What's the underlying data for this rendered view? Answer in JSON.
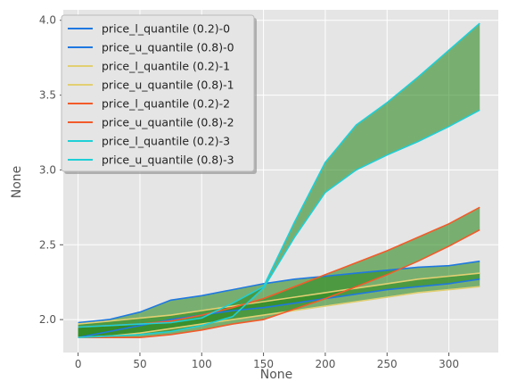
{
  "chart_data": {
    "type": "line",
    "xlabel": "None",
    "ylabel": "None",
    "xlim": [
      -12,
      340
    ],
    "ylim": [
      1.78,
      4.07
    ],
    "xticks": [
      0,
      50,
      100,
      150,
      200,
      250,
      300
    ],
    "yticks": [
      2.0,
      2.5,
      3.0,
      3.5,
      4.0
    ],
    "xtick_labels": [
      "0",
      "50",
      "100",
      "150",
      "200",
      "250",
      "300"
    ],
    "ytick_labels": [
      "2.0",
      "2.5",
      "3.0",
      "3.5",
      "4.0"
    ],
    "grid": true,
    "legend_position": "top-left",
    "fill_color": "#2e8b22",
    "bands": [
      {
        "lower_name": "price_l_quantile (0.2)-0",
        "upper_name": "price_u_quantile (0.8)-0",
        "color": "#1f78e0",
        "x": [
          0,
          25,
          50,
          75,
          100,
          125,
          150,
          175,
          200,
          225,
          250,
          275,
          300,
          325
        ],
        "lower": [
          1.88,
          1.92,
          1.96,
          2.0,
          2.03,
          2.06,
          2.08,
          2.11,
          2.14,
          2.17,
          2.2,
          2.22,
          2.24,
          2.27
        ],
        "upper": [
          1.98,
          2.0,
          2.05,
          2.13,
          2.16,
          2.2,
          2.24,
          2.27,
          2.29,
          2.31,
          2.33,
          2.35,
          2.36,
          2.39
        ]
      },
      {
        "lower_name": "price_l_quantile (0.2)-1",
        "upper_name": "price_u_quantile (0.8)-1",
        "color": "#e2cf72",
        "x": [
          0,
          25,
          50,
          75,
          100,
          125,
          150,
          175,
          200,
          225,
          250,
          275,
          300,
          325
        ],
        "lower": [
          1.88,
          1.89,
          1.91,
          1.94,
          1.97,
          2.0,
          2.03,
          2.06,
          2.09,
          2.12,
          2.15,
          2.18,
          2.2,
          2.22
        ],
        "upper": [
          1.97,
          1.99,
          2.01,
          2.03,
          2.06,
          2.09,
          2.12,
          2.15,
          2.18,
          2.21,
          2.24,
          2.27,
          2.29,
          2.31
        ]
      },
      {
        "lower_name": "price_l_quantile (0.2)-2",
        "upper_name": "price_u_quantile (0.8)-2",
        "color": "#f25b2a",
        "x": [
          0,
          25,
          50,
          75,
          100,
          125,
          150,
          175,
          200,
          225,
          250,
          275,
          300,
          325
        ],
        "lower": [
          1.88,
          1.88,
          1.88,
          1.9,
          1.93,
          1.97,
          2.0,
          2.07,
          2.14,
          2.22,
          2.3,
          2.39,
          2.49,
          2.6
        ],
        "upper": [
          1.95,
          1.96,
          1.97,
          1.99,
          2.03,
          2.08,
          2.14,
          2.22,
          2.3,
          2.38,
          2.46,
          2.55,
          2.64,
          2.75
        ]
      },
      {
        "lower_name": "price_l_quantile (0.2)-3",
        "upper_name": "price_u_quantile (0.8)-3",
        "color": "#1fcfd6",
        "x": [
          0,
          25,
          50,
          75,
          100,
          125,
          150,
          175,
          200,
          225,
          250,
          275,
          300,
          325
        ],
        "lower": [
          1.88,
          1.89,
          1.9,
          1.92,
          1.96,
          2.02,
          2.21,
          2.55,
          2.85,
          3.0,
          3.1,
          3.19,
          3.29,
          3.4
        ],
        "upper": [
          1.95,
          1.96,
          1.97,
          1.98,
          2.01,
          2.11,
          2.22,
          2.65,
          3.05,
          3.3,
          3.45,
          3.62,
          3.8,
          3.98
        ]
      }
    ]
  }
}
